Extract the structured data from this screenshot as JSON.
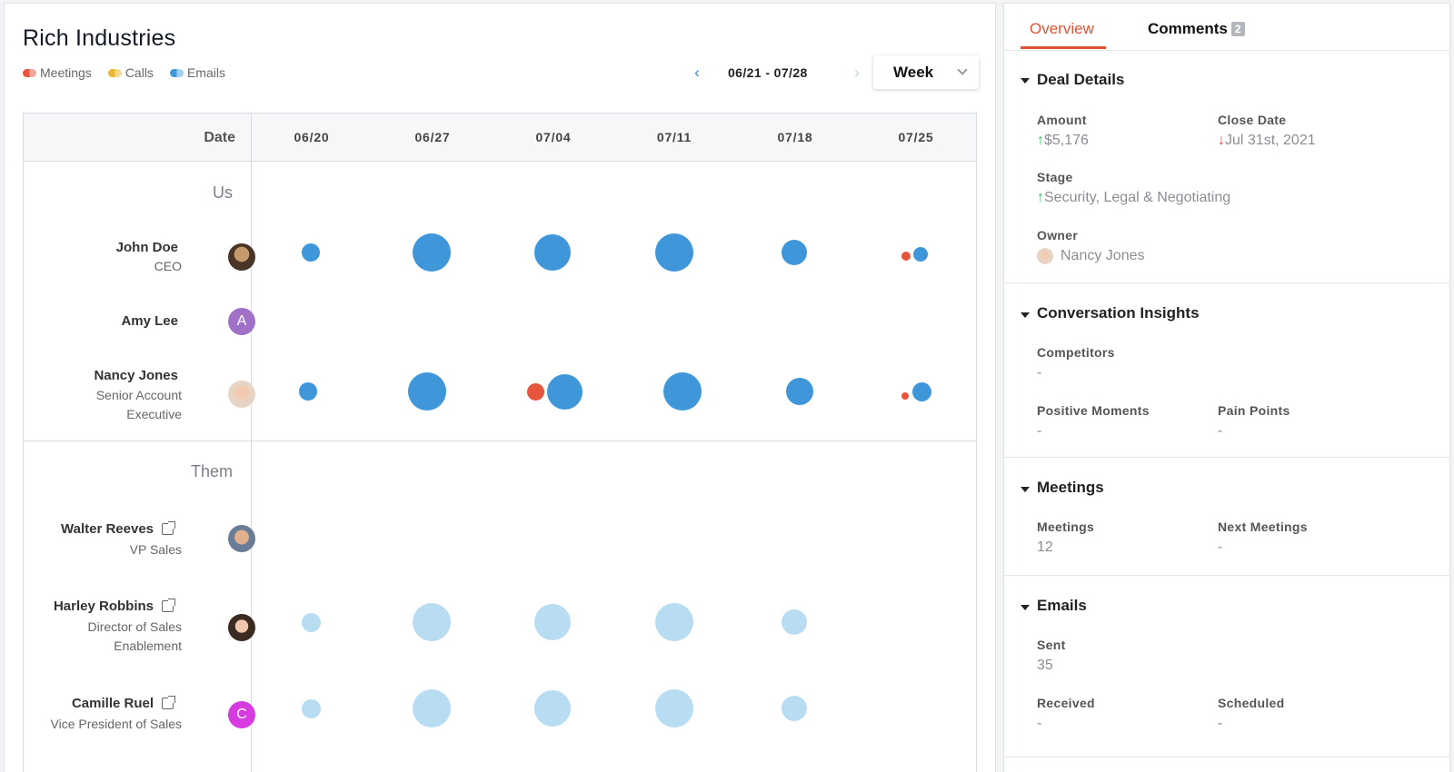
{
  "company": "Rich Industries",
  "legend": [
    {
      "label": "Meetings",
      "color": "#ef6f57"
    },
    {
      "label": "Calls",
      "color": "#e8c547"
    },
    {
      "label": "Emails",
      "color": "#68b4e8"
    }
  ],
  "nav": {
    "prev_icon": "‹",
    "next_icon": "›",
    "range": "06/21 - 07/28",
    "period": "Week"
  },
  "grid": {
    "date_label": "Date",
    "dates": [
      "06/20",
      "06/27",
      "07/04",
      "07/11",
      "07/18",
      "07/25"
    ],
    "us_label": "Us",
    "them_label": "Them",
    "us": [
      {
        "name": "John Doe",
        "role": "CEO"
      },
      {
        "name": "Amy Lee",
        "role": "",
        "initial": "A"
      },
      {
        "name": "Nancy Jones",
        "role": "Senior Account Executive"
      }
    ],
    "them": [
      {
        "name": "Walter Reeves",
        "role": "VP Sales"
      },
      {
        "name": "Harley Robbins",
        "role": "Director of Sales Enablement"
      },
      {
        "name": "Camille Ruel",
        "role": "Vice President of Sales",
        "initial": "C"
      }
    ]
  },
  "colors": {
    "email_dark": "#3f97d9",
    "email_light": "#b8dcf2",
    "meeting": "#e8553e",
    "accent": "#e15235"
  },
  "tabs": {
    "overview": "Overview",
    "comments": "Comments",
    "comments_count": "2"
  },
  "deal": {
    "title": "Deal Details",
    "amount_label": "Amount",
    "amount": "$5,176",
    "close_label": "Close Date",
    "close": "Jul 31st, 2021",
    "stage_label": "Stage",
    "stage": "Security, Legal & Negotiating",
    "owner_label": "Owner",
    "owner": "Nancy Jones",
    "up_arrow": "↑",
    "down_arrow": "↓"
  },
  "insights": {
    "title": "Conversation Insights",
    "competitors_label": "Competitors",
    "competitors": "-",
    "positive_label": "Positive Moments",
    "positive": "-",
    "pain_label": "Pain Points",
    "pain": "-"
  },
  "meetings": {
    "title": "Meetings",
    "meetings_label": "Meetings",
    "meetings": "12",
    "next_label": "Next Meetings",
    "next": "-"
  },
  "emails": {
    "title": "Emails",
    "sent_label": "Sent",
    "sent": "35",
    "received_label": "Received",
    "received": "-",
    "scheduled_label": "Scheduled",
    "scheduled": "-"
  }
}
